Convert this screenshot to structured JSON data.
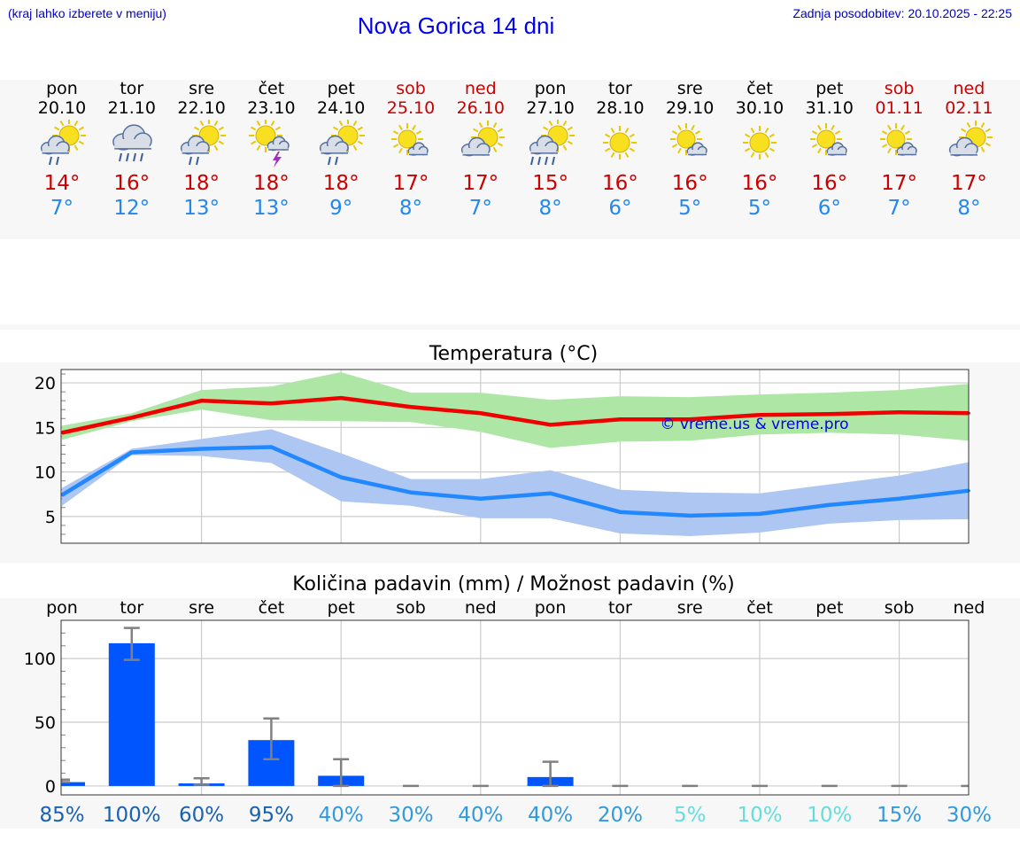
{
  "header": {
    "hint": "(kraj lahko izberete v meniju)",
    "title": "Nova Gorica 14 dni",
    "updated": "Zadnja posodobitev: 20.10.2025 - 22:25"
  },
  "days": [
    {
      "name": "pon",
      "date": "20.10",
      "max": "14°",
      "min": "7°",
      "icon": "sun-cloud-rain-icon",
      "weekend": false
    },
    {
      "name": "tor",
      "date": "21.10",
      "max": "16°",
      "min": "12°",
      "icon": "cloud-heavy-rain-icon",
      "weekend": false
    },
    {
      "name": "sre",
      "date": "22.10",
      "max": "18°",
      "min": "13°",
      "icon": "sun-cloud-rain-icon",
      "weekend": false
    },
    {
      "name": "čet",
      "date": "23.10",
      "max": "18°",
      "min": "13°",
      "icon": "sun-thunderstorm-icon",
      "weekend": false
    },
    {
      "name": "pet",
      "date": "24.10",
      "max": "18°",
      "min": "9°",
      "icon": "sun-cloud-rain-icon",
      "weekend": false
    },
    {
      "name": "sob",
      "date": "25.10",
      "max": "17°",
      "min": "8°",
      "icon": "sun-small-cloud-icon",
      "weekend": true
    },
    {
      "name": "ned",
      "date": "26.10",
      "max": "17°",
      "min": "7°",
      "icon": "sun-behind-cloud-icon",
      "weekend": true
    },
    {
      "name": "pon",
      "date": "27.10",
      "max": "15°",
      "min": "8°",
      "icon": "sun-cloud-heavy-rain-icon",
      "weekend": false
    },
    {
      "name": "tor",
      "date": "28.10",
      "max": "16°",
      "min": "6°",
      "icon": "sun-icon",
      "weekend": false
    },
    {
      "name": "sre",
      "date": "29.10",
      "max": "16°",
      "min": "5°",
      "icon": "sun-small-cloud-icon",
      "weekend": false
    },
    {
      "name": "čet",
      "date": "30.10",
      "max": "16°",
      "min": "5°",
      "icon": "sun-icon",
      "weekend": false
    },
    {
      "name": "pet",
      "date": "31.10",
      "max": "16°",
      "min": "6°",
      "icon": "sun-small-cloud-icon",
      "weekend": false
    },
    {
      "name": "sob",
      "date": "01.11",
      "max": "17°",
      "min": "7°",
      "icon": "sun-small-cloud-icon",
      "weekend": true
    },
    {
      "name": "ned",
      "date": "02.11",
      "max": "17°",
      "min": "8°",
      "icon": "sun-behind-cloud-icon",
      "weekend": true
    }
  ],
  "colors": {
    "max_line": "#ee0000",
    "max_band": "#aee6a6",
    "min_line": "#2288ff",
    "min_band": "#aec6f2",
    "bar": "#0055ff",
    "errbar": "#808080",
    "weekend": "#cc0000",
    "prob_high": "#1a62b0",
    "prob_mid": "#3399dd",
    "prob_low": "#66dddd"
  },
  "chart_data": [
    {
      "type": "line",
      "title": "Temperatura (°C)",
      "watermark": "© vreme.us & vreme.pro",
      "x": [
        0,
        1,
        2,
        3,
        4,
        5,
        6,
        7,
        8,
        9,
        10,
        11,
        12,
        13
      ],
      "ylim": [
        2,
        21.5
      ],
      "yticks": [
        5,
        10,
        15,
        20
      ],
      "grid": true,
      "series": [
        {
          "values": [
            14.4,
            16.1,
            18.0,
            17.7,
            18.3,
            17.3,
            16.6,
            15.3,
            15.9,
            15.9,
            16.4,
            16.5,
            16.7,
            16.6
          ],
          "upper": [
            15.2,
            16.6,
            19.2,
            19.6,
            21.2,
            18.9,
            18.9,
            18.1,
            18.5,
            18.4,
            18.7,
            18.9,
            19.2,
            19.9
          ],
          "lower": [
            13.6,
            15.7,
            17.0,
            15.8,
            15.7,
            15.6,
            14.5,
            12.7,
            13.4,
            13.5,
            14.2,
            14.4,
            14.2,
            13.5
          ]
        },
        {
          "values": [
            7.4,
            12.2,
            12.6,
            12.8,
            9.4,
            7.7,
            7.0,
            7.6,
            5.5,
            5.1,
            5.3,
            6.3,
            7.0,
            7.9
          ],
          "upper": [
            8.2,
            12.6,
            13.7,
            14.8,
            12.1,
            9.2,
            9.2,
            10.2,
            8.0,
            7.7,
            7.6,
            8.6,
            9.6,
            11.1
          ],
          "lower": [
            6.2,
            11.9,
            11.8,
            11.0,
            6.7,
            6.2,
            4.8,
            4.8,
            3.1,
            2.8,
            3.2,
            4.2,
            4.6,
            4.7
          ]
        }
      ]
    },
    {
      "type": "bar",
      "title": "Količina padavin (mm) / Možnost padavin (%)",
      "categories": [
        "pon",
        "tor",
        "sre",
        "čet",
        "pet",
        "sob",
        "ned",
        "pon",
        "tor",
        "sre",
        "čet",
        "pet",
        "sob",
        "ned"
      ],
      "values": [
        3,
        112,
        2,
        36,
        8,
        0,
        0,
        7,
        0,
        0,
        0,
        0,
        0,
        0
      ],
      "err_low": [
        3,
        99,
        1,
        21,
        0,
        0,
        0,
        0,
        0,
        0,
        0,
        0,
        0,
        0
      ],
      "err_high": [
        5,
        124,
        6,
        53,
        21,
        0,
        0,
        19,
        0,
        0,
        0,
        0,
        0,
        0
      ],
      "ylim": [
        -7,
        130
      ],
      "yticks": [
        0,
        50,
        100
      ],
      "grid": true,
      "probabilities": [
        "85%",
        "100%",
        "60%",
        "95%",
        "40%",
        "30%",
        "40%",
        "40%",
        "20%",
        "5%",
        "10%",
        "10%",
        "15%",
        "30%"
      ]
    }
  ]
}
